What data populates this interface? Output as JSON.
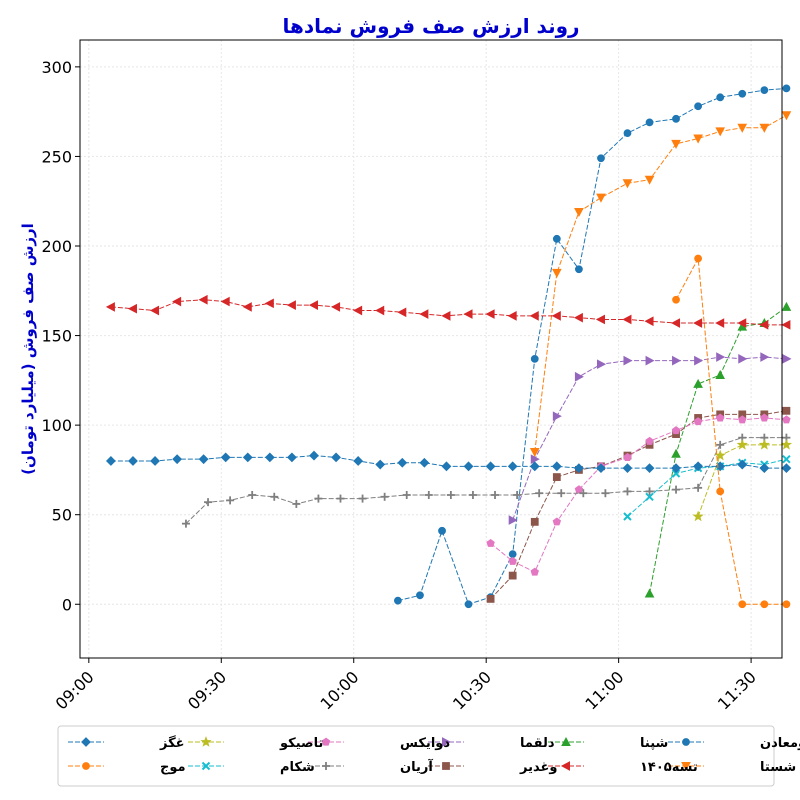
{
  "chart_data": {
    "type": "line",
    "title": "روند ارزش صف فروش نمادها",
    "xlabel": "",
    "ylabel": "ارزش صف فروش (میلیارد تومان)",
    "ylim": [
      -30,
      315
    ],
    "xlim": [
      "08:58",
      "11:37"
    ],
    "yticks": [
      0,
      50,
      100,
      150,
      200,
      250,
      300
    ],
    "xticks": [
      "09:00",
      "09:30",
      "10:00",
      "10:30",
      "11:00",
      "11:30"
    ],
    "grid": true,
    "legend_position": "bottom",
    "series": [
      {
        "name": "ومعادن",
        "color": "#1f77b4",
        "marker": "circle",
        "x": [
          "10:10",
          "10:15",
          "10:20",
          "10:26",
          "10:31",
          "10:36",
          "10:41",
          "10:46",
          "10:51",
          "10:56",
          "11:02",
          "11:07",
          "11:13",
          "11:18",
          "11:23",
          "11:28",
          "11:33",
          "11:38"
        ],
        "y": [
          2,
          5,
          41,
          0,
          4,
          28,
          137,
          204,
          187,
          249,
          263,
          269,
          271,
          278,
          283,
          285,
          287,
          288
        ]
      },
      {
        "name": "شستا",
        "color": "#ff7f0e",
        "marker": "triangle-down",
        "x": [
          "10:41",
          "10:46",
          "10:51",
          "10:56",
          "11:02",
          "11:07",
          "11:13",
          "11:18",
          "11:23",
          "11:28",
          "11:33",
          "11:38"
        ],
        "y": [
          85,
          185,
          219,
          227,
          235,
          237,
          257,
          260,
          264,
          266,
          266,
          273
        ]
      },
      {
        "name": "شپنا",
        "color": "#2ca02c",
        "marker": "triangle-up",
        "x": [
          "11:07",
          "11:13",
          "11:18",
          "11:23",
          "11:28",
          "11:33",
          "11:38"
        ],
        "y": [
          6,
          84,
          123,
          128,
          155,
          157,
          166
        ]
      },
      {
        "name": "تسه۱۴۰۵",
        "color": "#d62728",
        "marker": "triangle-left",
        "x": [
          "09:05",
          "09:10",
          "09:15",
          "09:20",
          "09:26",
          "09:31",
          "09:36",
          "09:41",
          "09:46",
          "09:51",
          "09:56",
          "10:01",
          "10:06",
          "10:11",
          "10:16",
          "10:21",
          "10:26",
          "10:31",
          "10:36",
          "10:41",
          "10:46",
          "10:51",
          "10:56",
          "11:02",
          "11:07",
          "11:13",
          "11:18",
          "11:23",
          "11:28",
          "11:33",
          "11:38"
        ],
        "y": [
          166,
          165,
          164,
          169,
          170,
          169,
          166,
          168,
          167,
          167,
          166,
          164,
          164,
          163,
          162,
          161,
          162,
          162,
          161,
          161,
          161,
          160,
          159,
          159,
          158,
          157,
          157,
          157,
          157,
          156,
          156
        ]
      },
      {
        "name": "دلقما",
        "color": "#9467bd",
        "marker": "triangle-right",
        "x": [
          "10:36",
          "10:41",
          "10:46",
          "10:51",
          "10:56",
          "11:02",
          "11:07",
          "11:13",
          "11:18",
          "11:23",
          "11:28",
          "11:33",
          "11:38"
        ],
        "y": [
          47,
          81,
          105,
          127,
          134,
          136,
          136,
          136,
          136,
          138,
          137,
          138,
          137
        ]
      },
      {
        "name": "وغدیر",
        "color": "#8c564b",
        "marker": "square",
        "x": [
          "10:31",
          "10:36",
          "10:41",
          "10:46",
          "10:51",
          "10:56",
          "11:02",
          "11:07",
          "11:13",
          "11:18",
          "11:23",
          "11:28",
          "11:33",
          "11:38"
        ],
        "y": [
          3,
          16,
          46,
          71,
          75,
          77,
          83,
          89,
          95,
          104,
          106,
          106,
          106,
          108
        ]
      },
      {
        "name": "دوایکس",
        "color": "#e377c2",
        "marker": "pentagon",
        "x": [
          "10:31",
          "10:36",
          "10:41",
          "10:46",
          "10:51",
          "10:56",
          "11:02",
          "11:07",
          "11:13",
          "11:18",
          "11:23",
          "11:28",
          "11:33",
          "11:38"
        ],
        "y": [
          34,
          24,
          18,
          46,
          64,
          77,
          82,
          91,
          97,
          102,
          104,
          103,
          104,
          103
        ]
      },
      {
        "name": "آریان",
        "color": "#7f7f7f",
        "marker": "plus",
        "x": [
          "09:22",
          "09:27",
          "09:32",
          "09:37",
          "09:42",
          "09:47",
          "09:52",
          "09:57",
          "10:02",
          "10:07",
          "10:12",
          "10:17",
          "10:22",
          "10:27",
          "10:32",
          "10:37",
          "10:42",
          "10:47",
          "10:52",
          "10:57",
          "11:02",
          "11:07",
          "11:13",
          "11:18",
          "11:23",
          "11:28",
          "11:33",
          "11:38"
        ],
        "y": [
          45,
          57,
          58,
          61,
          60,
          56,
          59,
          59,
          59,
          60,
          61,
          61,
          61,
          61,
          61,
          61,
          62,
          62,
          62,
          62,
          63,
          63,
          64,
          65,
          89,
          93,
          93,
          93
        ]
      },
      {
        "name": "تاصیکو",
        "color": "#bcbd22",
        "marker": "star",
        "x": [
          "11:18",
          "11:23",
          "11:28",
          "11:33",
          "11:38"
        ],
        "y": [
          49,
          83,
          89,
          89,
          89
        ]
      },
      {
        "name": "شکام",
        "color": "#17becf",
        "marker": "x",
        "x": [
          "11:02",
          "11:07",
          "11:13",
          "11:18",
          "11:23",
          "11:28",
          "11:33",
          "11:38"
        ],
        "y": [
          49,
          60,
          73,
          76,
          77,
          79,
          78,
          81
        ]
      },
      {
        "name": "غگز",
        "color": "#1f77b4",
        "marker": "diamond",
        "x": [
          "09:05",
          "09:10",
          "09:15",
          "09:20",
          "09:26",
          "09:31",
          "09:36",
          "09:41",
          "09:46",
          "09:51",
          "09:56",
          "10:01",
          "10:06",
          "10:11",
          "10:16",
          "10:21",
          "10:26",
          "10:31",
          "10:36",
          "10:41",
          "10:46",
          "10:51",
          "10:56",
          "11:02",
          "11:07",
          "11:13",
          "11:18",
          "11:23",
          "11:28",
          "11:33",
          "11:38"
        ],
        "y": [
          80,
          80,
          80,
          81,
          81,
          82,
          82,
          82,
          82,
          83,
          82,
          80,
          78,
          79,
          79,
          77,
          77,
          77,
          77,
          77,
          77,
          76,
          76,
          76,
          76,
          76,
          77,
          77,
          78,
          76,
          76
        ]
      },
      {
        "name": "موج",
        "color": "#ff7f0e",
        "marker": "circle",
        "x": [
          "11:13",
          "11:18",
          "11:23",
          "11:28",
          "11:33",
          "11:38"
        ],
        "y": [
          170,
          193,
          63,
          0,
          0,
          0
        ]
      }
    ]
  }
}
